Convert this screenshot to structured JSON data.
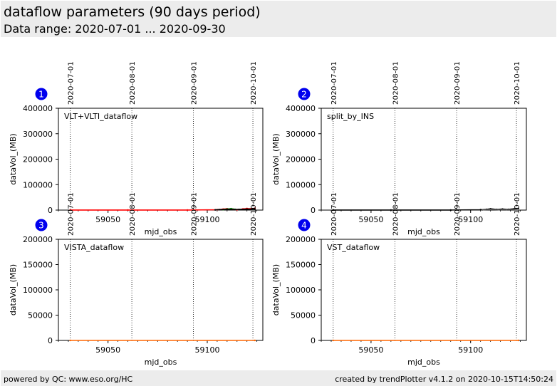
{
  "header": {
    "title": "dataflow parameters (90 days period)",
    "subtitle": "Data range: 2020-07-01 ... 2020-09-30"
  },
  "footer": {
    "left": "powered by QC: www.eso.org/HC",
    "right": "created by trendPlotter v4.1.2 on 2020-10-15T14:50:24"
  },
  "colors": {
    "badge": "#0000ee",
    "series_vlt": "#ff0000",
    "series_vlti": "#008000",
    "series_ins": "#000000",
    "series_flat": "#ff6600"
  },
  "chart_data": [
    {
      "type": "line",
      "badge": "1",
      "label": "VLT+VLTI_dataflow",
      "xlabel": "mjd_obs",
      "ylabel": "dataVol_(MB)",
      "xlim": [
        59025,
        59128
      ],
      "ylim": [
        0,
        400000
      ],
      "yticks": [
        0,
        100000,
        200000,
        300000,
        400000
      ],
      "xticks": [
        59050,
        59100
      ],
      "date_markers": [
        {
          "label": "2020-07-01",
          "x": 59031
        },
        {
          "label": "2020-08-01",
          "x": 59062
        },
        {
          "label": "2020-09-01",
          "x": 59093
        },
        {
          "label": "2020-10-01",
          "x": 59123
        }
      ],
      "series": [
        {
          "color": "#ff0000",
          "x": [
            59031,
            59060,
            59090,
            59105,
            59108,
            59110,
            59113,
            59115,
            59118,
            59120,
            59122,
            59124
          ],
          "y": [
            300,
            300,
            300,
            1500,
            3500,
            5000,
            3000,
            1500,
            4500,
            6000,
            5000,
            7000
          ]
        },
        {
          "color": "#008000",
          "x": [
            59108,
            59110,
            59112,
            59114
          ],
          "y": [
            2000,
            4000,
            5500,
            3000
          ]
        },
        {
          "color": "#000000",
          "x": [
            59104,
            59106,
            59110,
            59116,
            59120,
            59124
          ],
          "y": [
            800,
            2000,
            3000,
            2500,
            3500,
            4000
          ]
        }
      ]
    },
    {
      "type": "line",
      "badge": "2",
      "label": "split_by_INS",
      "xlabel": "mjd_obs",
      "ylabel": "dataVol_(MB)",
      "xlim": [
        59025,
        59128
      ],
      "ylim": [
        0,
        400000
      ],
      "yticks": [
        0,
        100000,
        200000,
        300000,
        400000
      ],
      "xticks": [
        59050,
        59100
      ],
      "date_markers": [
        {
          "label": "2020-07-01",
          "x": 59031
        },
        {
          "label": "2020-08-01",
          "x": 59062
        },
        {
          "label": "2020-09-01",
          "x": 59093
        },
        {
          "label": "2020-10-01",
          "x": 59123
        }
      ],
      "series": [
        {
          "color": "#000000",
          "x": [
            59031,
            59060,
            59090,
            59105,
            59108,
            59110,
            59113,
            59116,
            59119,
            59122,
            59124
          ],
          "y": [
            200,
            200,
            200,
            1500,
            3000,
            5000,
            2500,
            4000,
            3000,
            5500,
            6500
          ]
        },
        {
          "color": "#555555",
          "x": [
            59106,
            59110,
            59114,
            59118,
            59122
          ],
          "y": [
            1000,
            2500,
            1500,
            2500,
            3000
          ]
        }
      ]
    },
    {
      "type": "line",
      "badge": "3",
      "label": "VISTA_dataflow",
      "xlabel": "mjd_obs",
      "ylabel": "dataVol_(MB)",
      "xlim": [
        59025,
        59128
      ],
      "ylim": [
        0,
        200000
      ],
      "yticks": [
        0,
        50000,
        100000,
        150000,
        200000
      ],
      "xticks": [
        59050,
        59100
      ],
      "date_markers": [
        {
          "label": "2020-07-01",
          "x": 59031
        },
        {
          "label": "2020-08-01",
          "x": 59062
        },
        {
          "label": "2020-09-01",
          "x": 59093
        },
        {
          "label": "2020-10-01",
          "x": 59123
        }
      ],
      "series": [
        {
          "color": "#ff6600",
          "x": [
            59031,
            59124
          ],
          "y": [
            0,
            0
          ]
        }
      ]
    },
    {
      "type": "line",
      "badge": "4",
      "label": "VST_dataflow",
      "xlabel": "mjd_obs",
      "ylabel": "dataVol_(MB)",
      "xlim": [
        59025,
        59128
      ],
      "ylim": [
        0,
        200000
      ],
      "yticks": [
        0,
        50000,
        100000,
        150000,
        200000
      ],
      "xticks": [
        59050,
        59100
      ],
      "date_markers": [
        {
          "label": "2020-07-01",
          "x": 59031
        },
        {
          "label": "2020-08-01",
          "x": 59062
        },
        {
          "label": "2020-09-01",
          "x": 59093
        },
        {
          "label": "2020-10-01",
          "x": 59123
        }
      ],
      "series": [
        {
          "color": "#ff6600",
          "x": [
            59031,
            59124
          ],
          "y": [
            0,
            0
          ]
        }
      ]
    }
  ]
}
